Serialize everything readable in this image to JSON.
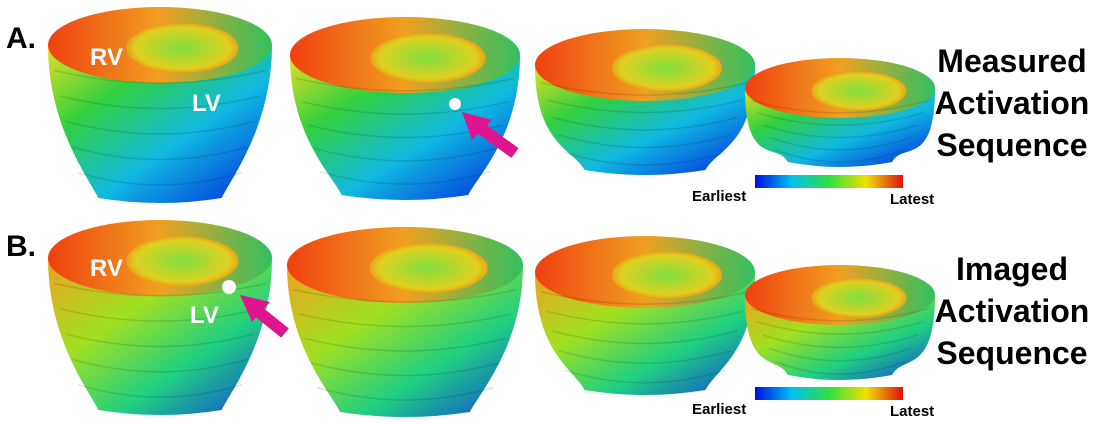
{
  "panels": [
    {
      "label": "A.",
      "title": [
        "Measured",
        "Activation",
        "Sequence"
      ],
      "rv": "RV",
      "lv": "LV",
      "colorbar": {
        "earliest": "Earliest",
        "latest": "Latest"
      }
    },
    {
      "label": "B.",
      "title": [
        "Imaged",
        "Activation",
        "Sequence"
      ],
      "rv": "RV",
      "lv": "LV",
      "colorbar": {
        "earliest": "Earliest",
        "latest": "Latest"
      }
    }
  ]
}
